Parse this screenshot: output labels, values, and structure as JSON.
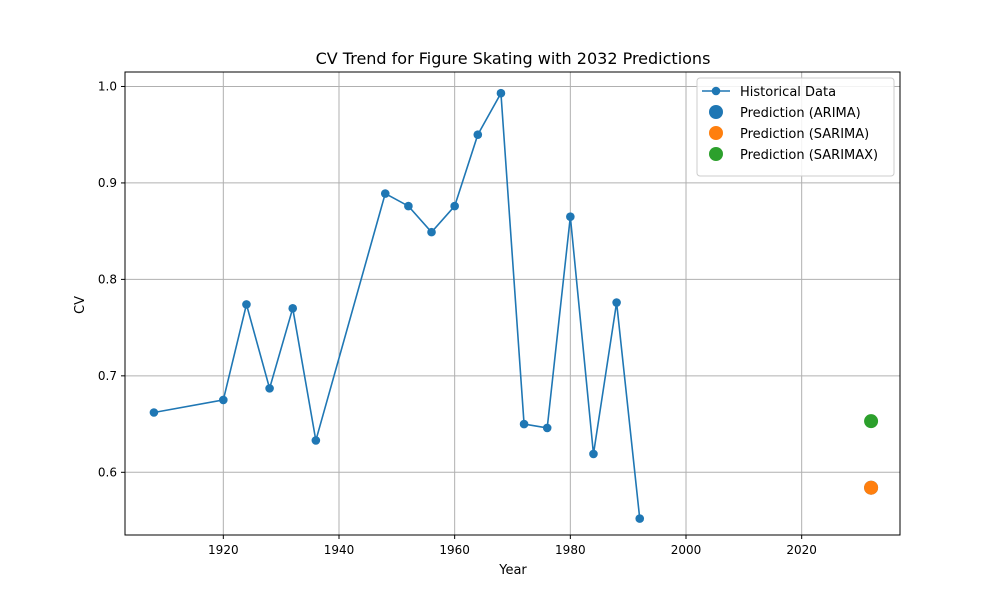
{
  "chart_data": {
    "type": "line",
    "title": "CV Trend for Figure Skating with 2032 Predictions",
    "xlabel": "Year",
    "ylabel": "CV",
    "xlim": [
      1903,
      2037
    ],
    "ylim": [
      0.535,
      1.015
    ],
    "xticks": [
      1920,
      1940,
      1960,
      1980,
      2000,
      2020
    ],
    "yticks": [
      0.6,
      0.7,
      0.8,
      0.9,
      1.0
    ],
    "grid": true,
    "legend_position": "top-right",
    "series": [
      {
        "name": "Historical Data",
        "kind": "line-markers",
        "color": "#1f77b4",
        "x": [
          1908,
          1920,
          1924,
          1928,
          1932,
          1936,
          1948,
          1952,
          1956,
          1960,
          1964,
          1968,
          1972,
          1976,
          1980,
          1984,
          1988,
          1992
        ],
        "y": [
          0.662,
          0.675,
          0.774,
          0.687,
          0.77,
          0.633,
          0.889,
          0.876,
          0.849,
          0.876,
          0.95,
          0.993,
          0.65,
          0.646,
          0.865,
          0.619,
          0.776,
          0.552
        ]
      },
      {
        "name": "Prediction (ARIMA)",
        "kind": "point",
        "color": "#1f77b4",
        "x": [
          2032
        ],
        "y": [
          0.584
        ]
      },
      {
        "name": "Prediction (SARIMA)",
        "kind": "point",
        "color": "#ff7f0e",
        "x": [
          2032
        ],
        "y": [
          0.584
        ]
      },
      {
        "name": "Prediction (SARIMAX)",
        "kind": "point",
        "color": "#2ca02c",
        "x": [
          2032
        ],
        "y": [
          0.653
        ]
      }
    ]
  }
}
